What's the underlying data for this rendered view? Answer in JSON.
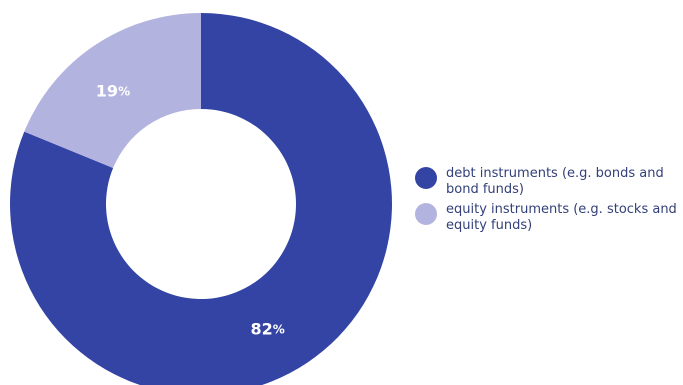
{
  "chart_data": {
    "type": "pie",
    "donut": true,
    "title": "",
    "categories": [
      "debt instruments (e.g. bonds and bond funds)",
      "equity instruments (e.g. stocks and equity funds)"
    ],
    "values": [
      82,
      19
    ],
    "labels": [
      "82",
      "19"
    ],
    "unit": "%",
    "colors": [
      "#3344a4",
      "#b3b3e0"
    ],
    "legend_position": "right"
  }
}
